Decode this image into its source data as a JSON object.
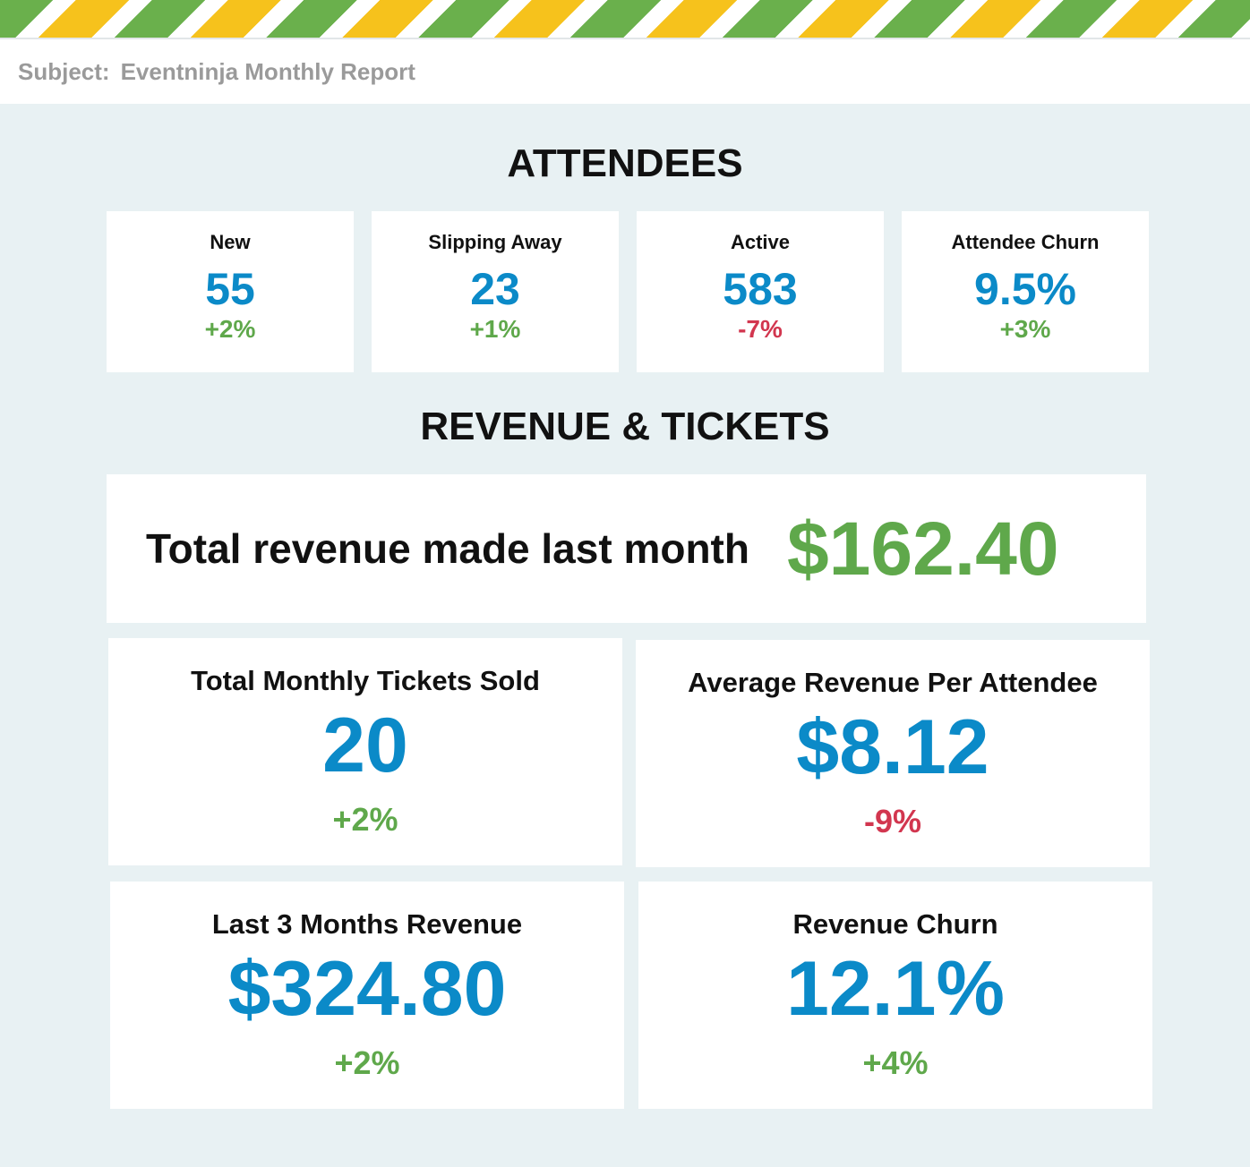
{
  "header": {
    "subject_label": "Subject:",
    "subject_text": "Eventninja Monthly Report"
  },
  "attendees": {
    "title": "ATTENDEES",
    "cards": [
      {
        "label": "New",
        "value": "55",
        "delta": "+2%",
        "trend": "positive"
      },
      {
        "label": "Slipping Away",
        "value": "23",
        "delta": "+1%",
        "trend": "positive"
      },
      {
        "label": "Active",
        "value": "583",
        "delta": "-7%",
        "trend": "negative"
      },
      {
        "label": "Attendee Churn",
        "value": "9.5%",
        "delta": "+3%",
        "trend": "positive"
      }
    ]
  },
  "revenue": {
    "title": "REVENUE & TICKETS",
    "total_label": "Total revenue made last month",
    "total_value": "$162.40",
    "cards": [
      {
        "label": "Total Monthly Tickets Sold",
        "value": "20",
        "delta": "+2%",
        "trend": "positive"
      },
      {
        "label": "Average Revenue Per Attendee",
        "value": "$8.12",
        "delta": "-9%",
        "trend": "negative"
      },
      {
        "label": "Last 3 Months Revenue",
        "value": "$324.80",
        "delta": "+2%",
        "trend": "positive"
      },
      {
        "label": "Revenue Churn",
        "value": "12.1%",
        "delta": "+4%",
        "trend": "positive"
      }
    ]
  },
  "colors": {
    "value_blue": "#0b8ac8",
    "positive_green": "#5fa84b",
    "negative_red": "#d2364f",
    "background": "#e8f1f3"
  }
}
